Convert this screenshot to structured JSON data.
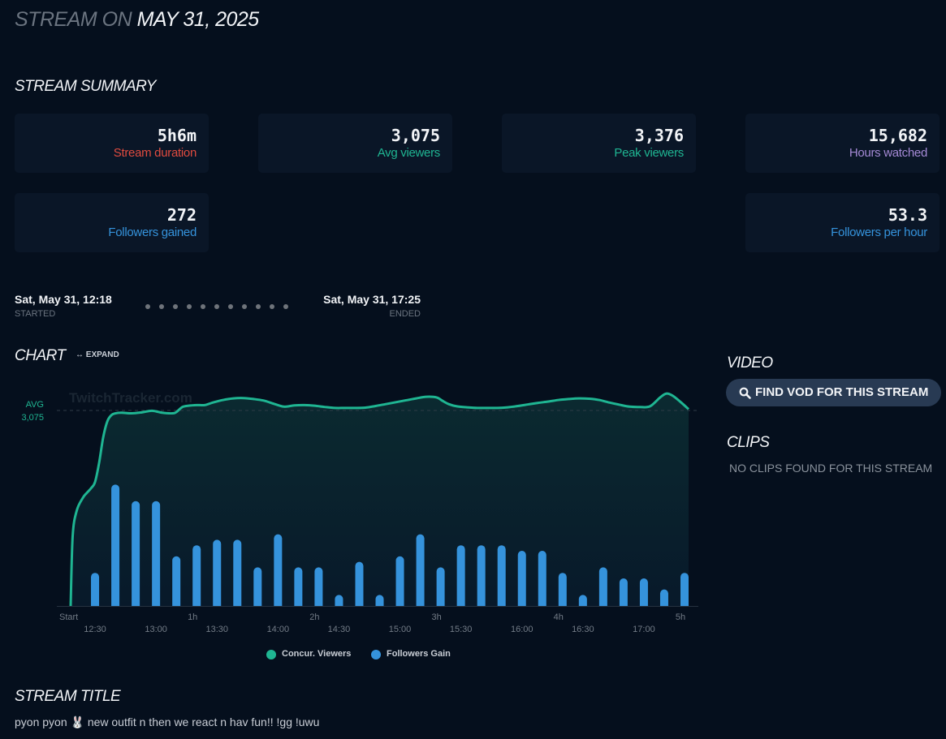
{
  "header": {
    "title_prefix": "STREAM ON",
    "title_date": "MAY 31, 2025"
  },
  "summary": {
    "heading": "STREAM SUMMARY",
    "cards": [
      {
        "value": "5h6m",
        "label": "Stream duration",
        "color": "#e04b3f"
      },
      {
        "value": "3,075",
        "label": "Avg viewers",
        "color": "#1fb592"
      },
      {
        "value": "3,376",
        "label": "Peak viewers",
        "color": "#1fb592"
      },
      {
        "value": "15,682",
        "label": "Hours watched",
        "color": "#a58ad6"
      },
      {
        "value": "272",
        "label": "Followers gained",
        "color": "#3593dc"
      },
      {
        "value": "53.3",
        "label": "Followers per hour",
        "color": "#3593dc"
      }
    ]
  },
  "timeline": {
    "started_time": "Sat, May 31, 12:18",
    "started_label": "STARTED",
    "ended_time": "Sat, May 31, 17:25",
    "ended_label": "ENDED"
  },
  "chart_section": {
    "heading": "CHART",
    "expand_label": "EXPAND",
    "expand_icon": "double-arrow-icon"
  },
  "video": {
    "heading": "VIDEO",
    "button_label": "FIND VOD FOR THIS STREAM",
    "button_icon": "search-icon"
  },
  "clips": {
    "heading": "CLIPS",
    "empty_text": "NO CLIPS FOUND FOR THIS STREAM"
  },
  "stream_title": {
    "heading": "STREAM TITLE",
    "text": "pyon pyon 🐰 new outfit n then we react n hav fun!! !gg !uwu"
  },
  "chart_data": {
    "type": "line+bar",
    "title": "",
    "watermark": "TwitchTracker.com",
    "xlabel": "",
    "ylabel": "",
    "x_unit": "minutes since start",
    "xlim": [
      0,
      306
    ],
    "avg_line": {
      "label": "AVG",
      "value": 3075,
      "value_label": "3,075"
    },
    "x_ticks_duration": [
      {
        "min": 0,
        "label": "Start"
      },
      {
        "min": 60,
        "label": "1h"
      },
      {
        "min": 120,
        "label": "2h"
      },
      {
        "min": 180,
        "label": "3h"
      },
      {
        "min": 240,
        "label": "4h"
      },
      {
        "min": 300,
        "label": "5h"
      }
    ],
    "x_ticks_clock": [
      {
        "min": 12,
        "label": "12:30"
      },
      {
        "min": 42,
        "label": "13:00"
      },
      {
        "min": 72,
        "label": "13:30"
      },
      {
        "min": 102,
        "label": "14:00"
      },
      {
        "min": 132,
        "label": "14:30"
      },
      {
        "min": 162,
        "label": "15:00"
      },
      {
        "min": 192,
        "label": "15:30"
      },
      {
        "min": 222,
        "label": "16:00"
      },
      {
        "min": 252,
        "label": "16:30"
      },
      {
        "min": 282,
        "label": "17:00"
      }
    ],
    "legend": {
      "placement": "bottom-center",
      "items": [
        {
          "name": "Concur. Viewers",
          "color": "#1fb592"
        },
        {
          "name": "Followers Gain",
          "color": "#3593dc"
        }
      ]
    },
    "series": [
      {
        "name": "Concur. Viewers",
        "type": "area",
        "color": "#1fb592",
        "ylim": [
          0,
          3400
        ],
        "x": [
          0,
          1,
          3,
          6,
          8,
          10,
          12,
          14,
          16,
          18,
          20,
          22,
          25,
          30,
          35,
          40,
          45,
          50,
          52,
          55,
          58,
          62,
          66,
          70,
          75,
          80,
          85,
          90,
          95,
          100,
          105,
          110,
          115,
          120,
          125,
          130,
          135,
          140,
          145,
          150,
          155,
          160,
          165,
          170,
          175,
          180,
          183,
          186,
          190,
          195,
          200,
          205,
          210,
          215,
          220,
          225,
          230,
          235,
          240,
          245,
          250,
          255,
          260,
          265,
          270,
          275,
          280,
          285,
          290,
          293,
          296,
          300,
          304
        ],
        "values": [
          0,
          1100,
          1500,
          1700,
          1780,
          1850,
          1950,
          2250,
          2650,
          2900,
          3000,
          3030,
          3040,
          3030,
          3045,
          3070,
          3040,
          3030,
          3050,
          3130,
          3150,
          3160,
          3160,
          3200,
          3240,
          3265,
          3270,
          3255,
          3230,
          3180,
          3135,
          3155,
          3160,
          3150,
          3130,
          3115,
          3115,
          3115,
          3120,
          3145,
          3175,
          3205,
          3235,
          3265,
          3290,
          3280,
          3225,
          3175,
          3140,
          3125,
          3115,
          3115,
          3115,
          3125,
          3145,
          3170,
          3195,
          3215,
          3240,
          3255,
          3265,
          3260,
          3240,
          3200,
          3165,
          3135,
          3130,
          3140,
          3280,
          3340,
          3310,
          3210,
          3095
        ]
      },
      {
        "name": "Followers Gain",
        "type": "bar",
        "color": "#3593dc",
        "x": [
          12,
          22,
          32,
          42,
          52,
          62,
          72,
          82,
          92,
          102,
          112,
          122,
          132,
          142,
          152,
          162,
          172,
          182,
          192,
          202,
          212,
          222,
          232,
          242,
          252,
          262,
          272,
          282,
          292,
          302
        ],
        "values": [
          6,
          22,
          19,
          19,
          9,
          11,
          12,
          12,
          7,
          13,
          7,
          7,
          2,
          8,
          2,
          9,
          13,
          7,
          11,
          11,
          11,
          10,
          10,
          6,
          2,
          7,
          5,
          5,
          3,
          6
        ],
        "ylim": [
          0,
          35
        ]
      }
    ]
  }
}
